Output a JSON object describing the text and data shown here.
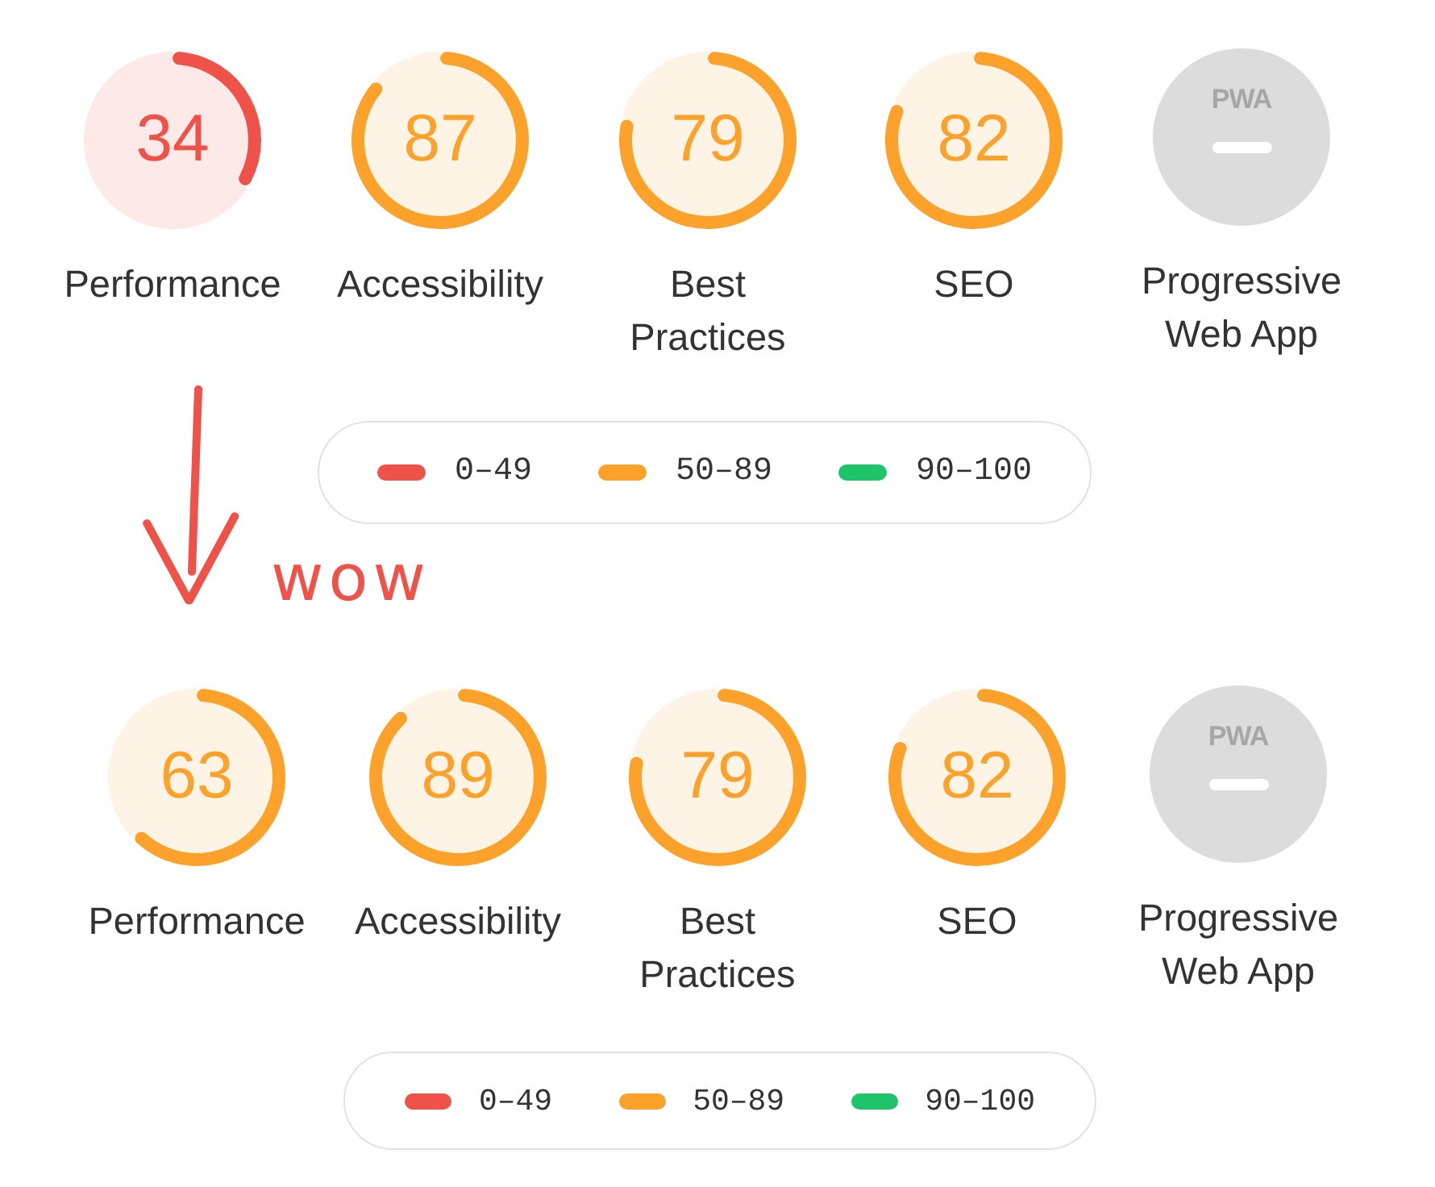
{
  "chart_data": [
    {
      "type": "donut",
      "title": "Performance",
      "categories": [
        null,
        null
      ],
      "values": [
        34,
        66
      ],
      "colors": [
        "#ef5249",
        "#fdeae8"
      ],
      "value_labels": [
        "34",
        null
      ]
    },
    {
      "type": "donut",
      "title": "Accessibility",
      "categories": [
        null,
        null
      ],
      "values": [
        87,
        13
      ],
      "colors": [
        "#fca22b",
        "#fef4e6"
      ],
      "value_labels": [
        "87",
        null
      ]
    },
    {
      "type": "donut",
      "title": "Best Practices",
      "categories": [
        null,
        null
      ],
      "values": [
        79,
        21
      ],
      "colors": [
        "#fca22b",
        "#fef4e6"
      ],
      "value_labels": [
        "79",
        null
      ]
    },
    {
      "type": "donut",
      "title": "SEO",
      "categories": [
        null,
        null
      ],
      "values": [
        82,
        18
      ],
      "colors": [
        "#fca22b",
        "#fef4e6"
      ],
      "value_labels": [
        "82",
        null
      ]
    },
    {
      "type": "other",
      "title": "Progressive Web App",
      "annotations": [
        "PWA"
      ]
    },
    {
      "type": "other",
      "categories": [
        "0–49",
        "50–89",
        "90–100"
      ],
      "colors": [
        "#ef5249",
        "#fca22b",
        "#1fc46a"
      ]
    },
    {
      "type": "other",
      "annotations": [
        "wow"
      ]
    },
    {
      "type": "donut",
      "title": "Performance",
      "categories": [
        null,
        null
      ],
      "values": [
        63,
        37
      ],
      "colors": [
        "#fca22b",
        "#fef4e6"
      ],
      "value_labels": [
        "63",
        null
      ]
    },
    {
      "type": "donut",
      "title": "Accessibility",
      "categories": [
        null,
        null
      ],
      "values": [
        89,
        11
      ],
      "colors": [
        "#fca22b",
        "#fef4e6"
      ],
      "value_labels": [
        "89",
        null
      ]
    },
    {
      "type": "donut",
      "title": "Best Practices",
      "categories": [
        null,
        null
      ],
      "values": [
        79,
        21
      ],
      "colors": [
        "#fca22b",
        "#fef4e6"
      ],
      "value_labels": [
        "79",
        null
      ]
    },
    {
      "type": "donut",
      "title": "SEO",
      "categories": [
        null,
        null
      ],
      "values": [
        82,
        18
      ],
      "colors": [
        "#fca22b",
        "#fef4e6"
      ],
      "value_labels": [
        "82",
        null
      ]
    },
    {
      "type": "other",
      "title": "Progressive Web App",
      "annotations": [
        "PWA"
      ]
    },
    {
      "type": "other",
      "categories": [
        "0–49",
        "50–89",
        "90–100"
      ],
      "colors": [
        "#ef5249",
        "#fca22b",
        "#1fc46a"
      ]
    }
  ]
}
